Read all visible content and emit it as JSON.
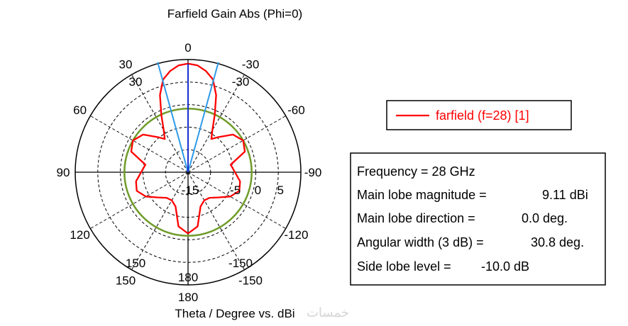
{
  "chart_data": {
    "type": "line",
    "coordinate_system": "polar",
    "title": "Farfield Gain Abs (Phi=0)",
    "xlabel": "Theta / Degree vs. dBi",
    "radial_range": [
      -15,
      10
    ],
    "radial_grid": [
      -10,
      -5,
      0,
      5
    ],
    "radial_tick_labels": [
      {
        "value": -15,
        "label": "-15"
      },
      {
        "value": -5,
        "label": "-5"
      },
      {
        "value": 0,
        "label": "0"
      },
      {
        "value": 5,
        "label": "5"
      }
    ],
    "angle_labels": [
      {
        "angle": 0,
        "label": "0"
      },
      {
        "angle": 30,
        "label": "30"
      },
      {
        "angle": 60,
        "label": "60"
      },
      {
        "angle": 90,
        "label": "90"
      },
      {
        "angle": 120,
        "label": "120"
      },
      {
        "angle": 150,
        "label": "150"
      },
      {
        "angle": 180,
        "label": "180"
      },
      {
        "angle": -150,
        "label": "-150"
      },
      {
        "angle": -120,
        "label": "-120"
      },
      {
        "angle": -90,
        "label": "-90"
      },
      {
        "angle": -60,
        "label": "-60"
      },
      {
        "angle": -30,
        "label": "-30"
      }
    ],
    "inner_angle_labels": [
      {
        "angle": 30,
        "label": "30"
      },
      {
        "angle": -30,
        "label": "-30"
      },
      {
        "angle": 150,
        "label": "150"
      },
      {
        "angle": -150,
        "label": "-150"
      },
      {
        "angle": 180,
        "label": "180"
      }
    ],
    "grid": true,
    "legend": {
      "position": "right"
    },
    "series": [
      {
        "name": "farfield (f=28) [1]",
        "color": "#ff0000",
        "theta": [
          -180,
          -170,
          -160,
          -150,
          -140,
          -130,
          -120,
          -110,
          -100,
          -90,
          -80,
          -70,
          -60,
          -50,
          -40,
          -35,
          -30,
          -25,
          -20,
          -15,
          -10,
          -5,
          0,
          5,
          10,
          15,
          20,
          25,
          30,
          35,
          40,
          50,
          60,
          70,
          80,
          90,
          100,
          110,
          120,
          130,
          140,
          150,
          160,
          170,
          180
        ],
        "gain_dbi": [
          -1.4,
          -2.8,
          -6.9,
          -7.8,
          -7.6,
          -6.3,
          -4.2,
          -2.9,
          -3.3,
          -4.6,
          -5.4,
          -1.6,
          -0.9,
          -2.0,
          -4.9,
          -6.0,
          -4.2,
          -1.0,
          3.2,
          6.3,
          7.8,
          8.8,
          9.11,
          8.8,
          7.8,
          6.3,
          3.2,
          -1.0,
          -4.2,
          -6.0,
          -4.9,
          -2.0,
          -0.9,
          -1.6,
          -5.4,
          -4.6,
          -3.3,
          -2.9,
          -4.2,
          -6.3,
          -7.6,
          -7.8,
          -6.9,
          -2.8,
          -1.4
        ]
      }
    ],
    "main_lobe": {
      "direction_deg": 0,
      "magnitude_dbi": 9.11,
      "angular_width_3db_deg": 30.8,
      "side_lobe_level_db": -10.0
    },
    "colors": {
      "main_lobe_direction": "#1a2fd0",
      "beamwidth_lines": "#2e9be8",
      "side_lobe_level_circle": "#6f9c2a",
      "grid": "#000000"
    }
  },
  "info_box": {
    "frequency": "Frequency = 28 GHz",
    "main_lobe_magnitude": {
      "label": "Main lobe magnitude =",
      "value": "9.11 dBi"
    },
    "main_lobe_direction": {
      "label": "Main lobe direction =",
      "value": "0.0 deg."
    },
    "angular_width": {
      "label": "Angular width (3 dB) =",
      "value": "30.8 deg."
    },
    "side_lobe_level": {
      "label": "Side lobe level =",
      "value": "-10.0 dB"
    }
  },
  "watermark": "خمسات"
}
